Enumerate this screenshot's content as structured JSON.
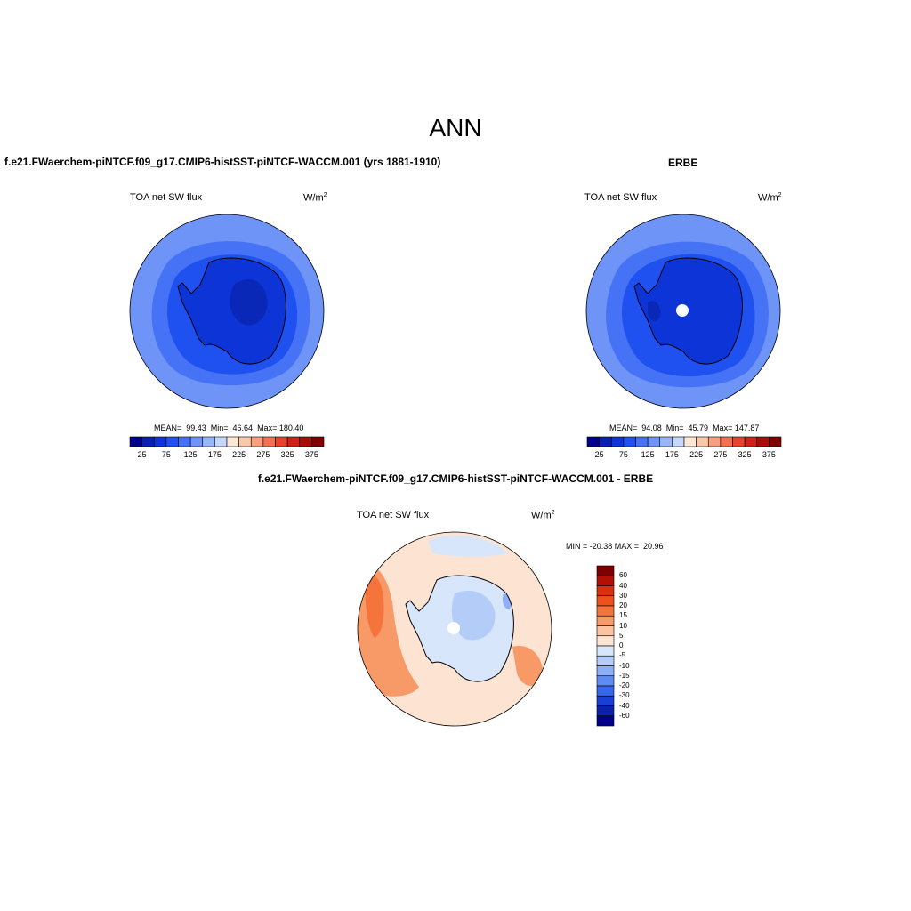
{
  "page_title": "ANN",
  "panels": [
    {
      "title": "f.e21.FWaerchem-piNTCF.f09_g17.CMIP6-histSST-piNTCF-WACCM.001 (yrs 1881-1910)",
      "variable": "TOA net SW flux",
      "units": "W/m",
      "units_exp": "2",
      "stats": "MEAN=  99.43  Min=  46.64  Max= 180.40"
    },
    {
      "title": "ERBE",
      "variable": "TOA net SW flux",
      "units": "W/m",
      "units_exp": "2",
      "stats": "MEAN=  94.08  Min=  45.79  Max= 147.87"
    },
    {
      "title": "f.e21.FWaerchem-piNTCF.f09_g17.CMIP6-histSST-piNTCF-WACCM.001 - ERBE",
      "variable": "TOA net SW flux",
      "units": "W/m",
      "units_exp": "2",
      "stats": "MIN = -20.38 MAX =  20.96"
    }
  ],
  "colorbar_abs": {
    "ticks": [
      "25",
      "75",
      "125",
      "175",
      "225",
      "275",
      "325",
      "375"
    ],
    "colors": [
      "#00008b",
      "#0a1fb0",
      "#0d34d6",
      "#1f50f0",
      "#4673f5",
      "#6e94f8",
      "#9ab6fa",
      "#c5d8fc",
      "#fde8d6",
      "#fbc7aa",
      "#f89f7c",
      "#f2714f",
      "#e5452b",
      "#cc2316",
      "#a50f08",
      "#7f0000"
    ]
  },
  "colorbar_diff": {
    "ticks": [
      "60",
      "40",
      "30",
      "20",
      "15",
      "10",
      "5",
      "0",
      "-5",
      "-10",
      "-15",
      "-20",
      "-30",
      "-40",
      "-60"
    ],
    "colors": [
      "#7f0000",
      "#b30f05",
      "#d8300f",
      "#f0501c",
      "#f4743c",
      "#f89a68",
      "#fbc3a2",
      "#fde4d2",
      "#d7e6fb",
      "#b3cdf8",
      "#8cb0f5",
      "#5f8cf3",
      "#3765ee",
      "#1a3fd6",
      "#0a22ad",
      "#00008b"
    ]
  },
  "map_colors": {
    "ocean_outer": "#6e94f8",
    "ocean_mid": "#4673f5",
    "ice_ring": "#1f50f0",
    "continent": "#0d34d6",
    "plateau": "#0a28b8",
    "diff_base": "#fde4d2",
    "diff_warm": "#f89a68",
    "diff_warm2": "#f4743c",
    "diff_cool": "#d7e6fb",
    "diff_cool2": "#b3cdf8",
    "diff_cool3": "#8cb0f5"
  }
}
